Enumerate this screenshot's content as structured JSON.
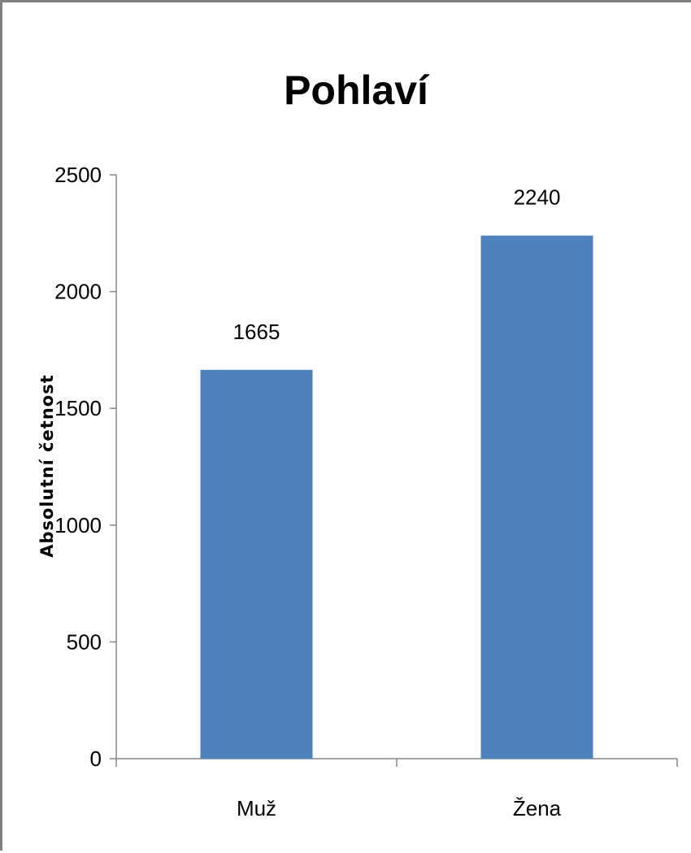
{
  "chart_data": {
    "type": "bar",
    "title": "Pohlaví",
    "xlabel": "",
    "ylabel": "Absolutní četnost",
    "categories": [
      "Muž",
      "Žena"
    ],
    "values": [
      1665,
      2240
    ],
    "data_labels": [
      "1665",
      "2240"
    ],
    "ylim": [
      0,
      2500
    ],
    "yticks": [
      0,
      500,
      1000,
      1500,
      2000,
      2500
    ],
    "grid": false,
    "legend": "none",
    "bar_color": "#4f81bd"
  }
}
